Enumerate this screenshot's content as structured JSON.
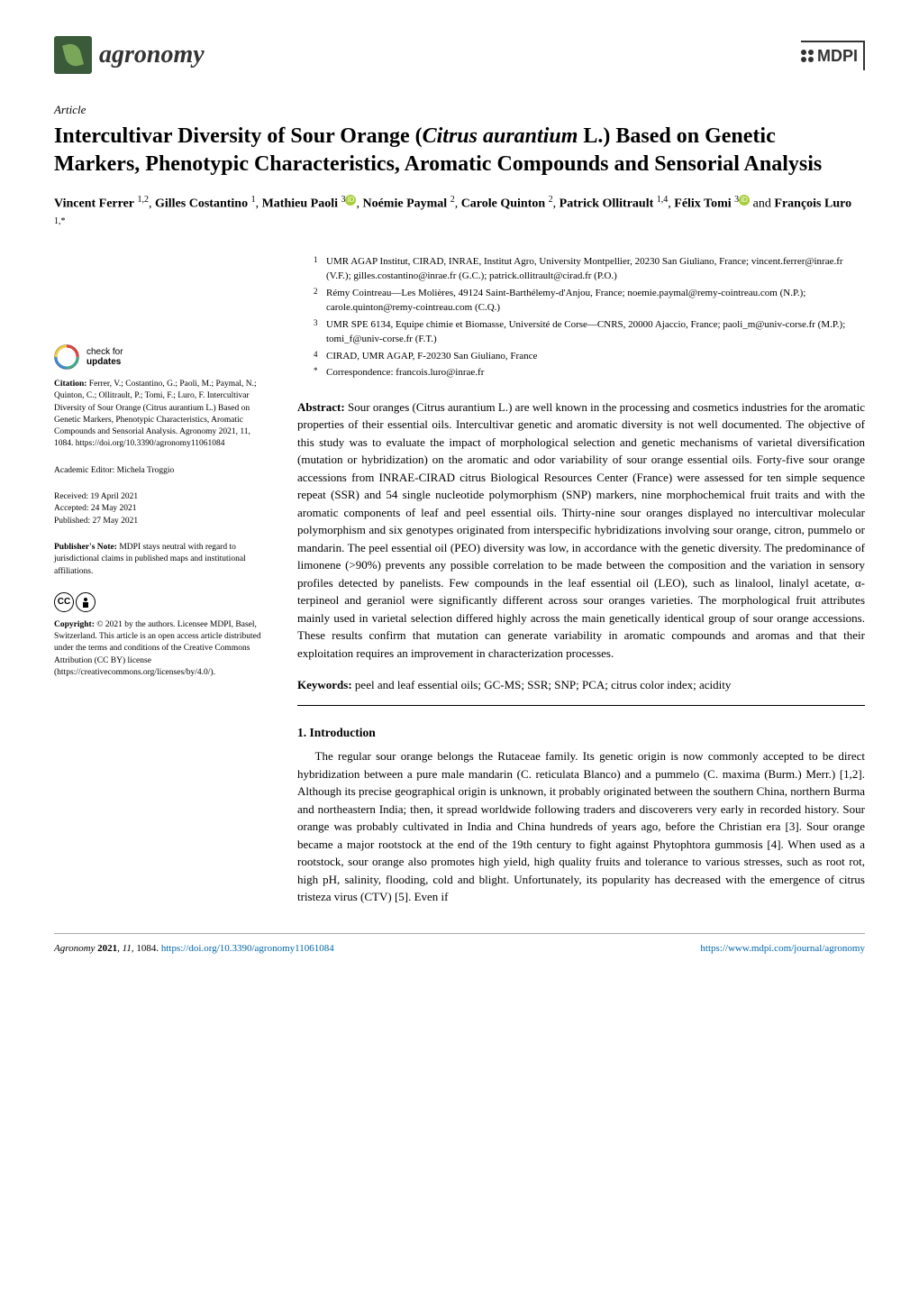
{
  "journal": {
    "name": "agronomy",
    "publisher": "MDPI"
  },
  "article_type": "Article",
  "title_parts": {
    "pre": "Intercultivar Diversity of Sour Orange (",
    "species": "Citrus aurantium",
    "post": " L.) Based on Genetic Markers, Phenotypic Characteristics, Aromatic Compounds and Sensorial Analysis"
  },
  "authors": [
    {
      "name": "Vincent Ferrer",
      "sup": "1,2"
    },
    {
      "name": "Gilles Costantino",
      "sup": "1"
    },
    {
      "name": "Mathieu Paoli",
      "sup": "3",
      "orcid": true
    },
    {
      "name": "Noémie Paymal",
      "sup": "2"
    },
    {
      "name": "Carole Quinton",
      "sup": "2"
    },
    {
      "name": "Patrick Ollitrault",
      "sup": "1,4"
    },
    {
      "name": "Félix Tomi",
      "sup": "3",
      "orcid": true
    },
    {
      "name": "François Luro",
      "sup": "1,*"
    }
  ],
  "affiliations": [
    {
      "num": "1",
      "text": "UMR AGAP Institut, CIRAD, INRAE, Institut Agro, University Montpellier, 20230 San Giuliano, France; vincent.ferrer@inrae.fr (V.F.); gilles.costantino@inrae.fr (G.C.); patrick.ollitrault@cirad.fr (P.O.)"
    },
    {
      "num": "2",
      "text": "Rémy Cointreau—Les Molières, 49124 Saint-Barthélemy-d'Anjou, France; noemie.paymal@remy-cointreau.com (N.P.); carole.quinton@remy-cointreau.com (C.Q.)"
    },
    {
      "num": "3",
      "text": "UMR SPE 6134, Equipe chimie et Biomasse, Université de Corse—CNRS, 20000 Ajaccio, France; paoli_m@univ-corse.fr (M.P.); tomi_f@univ-corse.fr (F.T.)"
    },
    {
      "num": "4",
      "text": "CIRAD, UMR AGAP, F-20230 San Giuliano, France"
    },
    {
      "num": "*",
      "text": "Correspondence: francois.luro@inrae.fr"
    }
  ],
  "abstract_label": "Abstract:",
  "abstract": "Sour oranges (Citrus aurantium L.) are well known in the processing and cosmetics industries for the aromatic properties of their essential oils. Intercultivar genetic and aromatic diversity is not well documented. The objective of this study was to evaluate the impact of morphological selection and genetic mechanisms of varietal diversification (mutation or hybridization) on the aromatic and odor variability of sour orange essential oils. Forty-five sour orange accessions from INRAE-CIRAD citrus Biological Resources Center (France) were assessed for ten simple sequence repeat (SSR) and 54 single nucleotide polymorphism (SNP) markers, nine morphochemical fruit traits and with the aromatic components of leaf and peel essential oils. Thirty-nine sour oranges displayed no intercultivar molecular polymorphism and six genotypes originated from interspecific hybridizations involving sour orange, citron, pummelo or mandarin. The peel essential oil (PEO) diversity was low, in accordance with the genetic diversity. The predominance of limonene (>90%) prevents any possible correlation to be made between the composition and the variation in sensory profiles detected by panelists. Few compounds in the leaf essential oil (LEO), such as linalool, linalyl acetate, α-terpineol and geraniol were significantly different across sour oranges varieties. The morphological fruit attributes mainly used in varietal selection differed highly across the main genetically identical group of sour orange accessions. These results confirm that mutation can generate variability in aromatic compounds and aromas and that their exploitation requires an improvement in characterization processes.",
  "keywords_label": "Keywords:",
  "keywords": "peel and leaf essential oils; GC-MS; SSR; SNP; PCA; citrus color index; acidity",
  "section1_heading": "1. Introduction",
  "intro_para": "The regular sour orange belongs the Rutaceae family. Its genetic origin is now commonly accepted to be direct hybridization between a pure male mandarin (C. reticulata Blanco) and a pummelo (C. maxima (Burm.) Merr.) [1,2]. Although its precise geographical origin is unknown, it probably originated between the southern China, northern Burma and northeastern India; then, it spread worldwide following traders and discoverers very early in recorded history. Sour orange was probably cultivated in India and China hundreds of years ago, before the Christian era [3]. Sour orange became a major rootstock at the end of the 19th century to fight against Phytophtora gummosis [4]. When used as a rootstock, sour orange also promotes high yield, high quality fruits and tolerance to various stresses, such as root rot, high pH, salinity, flooding, cold and blight. Unfortunately, its popularity has decreased with the emergence of citrus tristeza virus (CTV) [5]. Even if",
  "sidebar": {
    "check_updates": "check for updates",
    "citation_label": "Citation:",
    "citation": "Ferrer, V.; Costantino, G.; Paoli, M.; Paymal, N.; Quinton, C.; Ollitrault, P.; Tomi, F.; Luro, F. Intercultivar Diversity of Sour Orange (Citrus aurantium L.) Based on Genetic Markers, Phenotypic Characteristics, Aromatic Compounds and Sensorial Analysis. Agronomy 2021, 11, 1084. https://doi.org/10.3390/agronomy11061084",
    "editor_label": "Academic Editor:",
    "editor": "Michela Troggio",
    "received_label": "Received:",
    "received": "19 April 2021",
    "accepted_label": "Accepted:",
    "accepted": "24 May 2021",
    "published_label": "Published:",
    "published": "27 May 2021",
    "pubnote_label": "Publisher's Note:",
    "pubnote": "MDPI stays neutral with regard to jurisdictional claims in published maps and institutional affiliations.",
    "copyright_label": "Copyright:",
    "copyright": "© 2021 by the authors. Licensee MDPI, Basel, Switzerland. This article is an open access article distributed under the terms and conditions of the Creative Commons Attribution (CC BY) license (https://creativecommons.org/licenses/by/4.0/)."
  },
  "footer": {
    "left": "Agronomy 2021, 11, 1084. https://doi.org/10.3390/agronomy11061084",
    "right": "https://www.mdpi.com/journal/agronomy"
  },
  "colors": {
    "link": "#0066aa",
    "orcid": "#a6ce39",
    "logo_bg": "#3a5a3a",
    "logo_leaf": "#7aa65a"
  }
}
